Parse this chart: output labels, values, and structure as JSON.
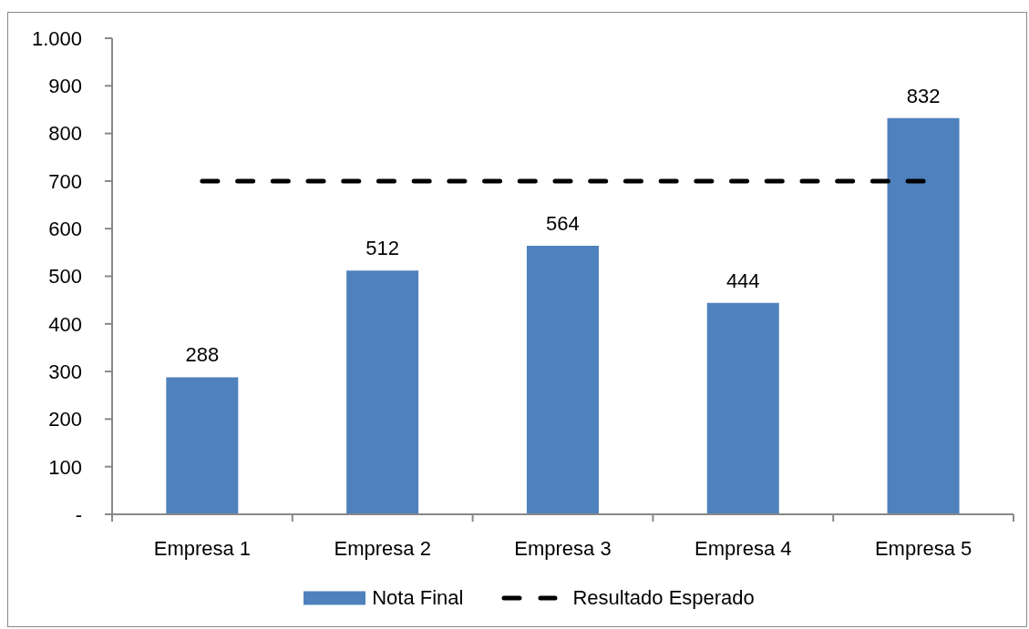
{
  "chart_data": {
    "type": "bar",
    "categories": [
      "Empresa 1",
      "Empresa 2",
      "Empresa 3",
      "Empresa 4",
      "Empresa 5"
    ],
    "series": [
      {
        "name": "Nota Final",
        "color": "#4f81bd",
        "values": [
          288,
          512,
          564,
          444,
          832
        ],
        "value_labels": [
          "288",
          "512",
          "564",
          "444",
          "832"
        ]
      },
      {
        "name": "Resultado Esperado",
        "type": "line",
        "color": "#000000",
        "values": [
          700,
          700,
          700,
          700,
          700
        ],
        "line_style": "dashed",
        "marker": "none"
      }
    ],
    "ylim": [
      0,
      1000
    ],
    "yticks": [
      {
        "value": 0,
        "label": "-"
      },
      100,
      200,
      300,
      400,
      500,
      600,
      700,
      800,
      900,
      {
        "value": 1000,
        "label": "1.000"
      }
    ],
    "legend": "bottom"
  }
}
